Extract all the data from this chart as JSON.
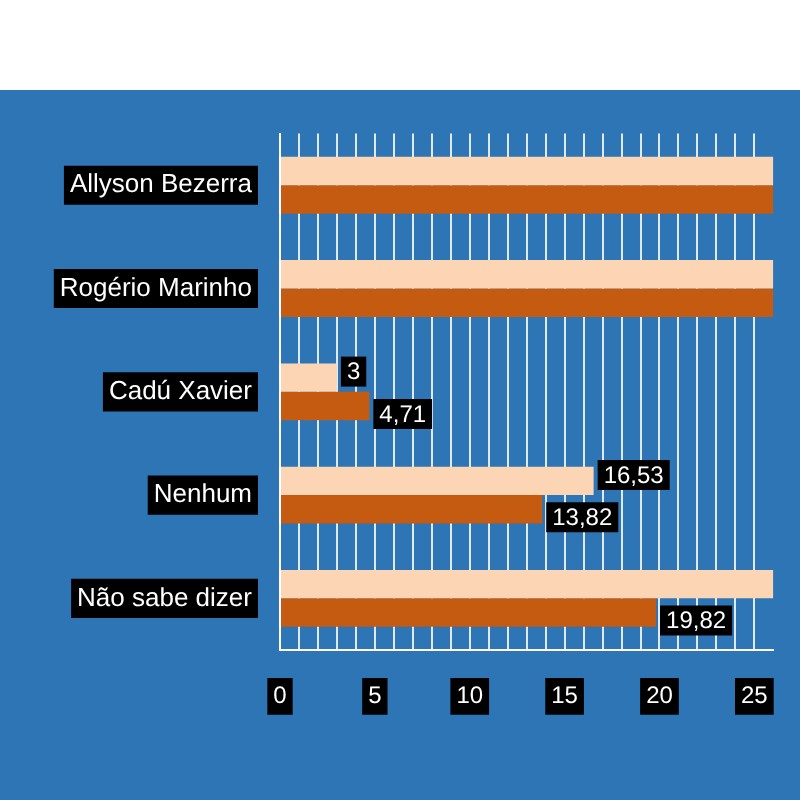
{
  "chart_data": {
    "type": "bar",
    "orientation": "horizontal",
    "categories": [
      "Allyson Bezerra",
      "Rogério Marinho",
      "Cadú Xavier",
      "Nenhum",
      "Não sabe dizer"
    ],
    "series": [
      {
        "color": "#fcd5b4",
        "values": [
          26,
          26,
          3,
          16.53,
          26
        ],
        "value_labels": [
          null,
          null,
          "3",
          "16,53",
          null
        ]
      },
      {
        "color": "#c55a11",
        "values": [
          26,
          26,
          4.71,
          13.82,
          19.82
        ],
        "value_labels": [
          null,
          null,
          "4,71",
          "13,82",
          "19,82"
        ]
      }
    ],
    "xlim": [
      0,
      26
    ],
    "xticks": [
      0,
      {
        "value": 1,
        "label": null
      },
      {
        "value": 2,
        "label": null
      },
      {
        "value": 3,
        "label": null
      },
      {
        "value": 4,
        "label": null
      },
      5,
      {
        "value": 6,
        "label": null
      },
      {
        "value": 7,
        "label": null
      },
      {
        "value": 8,
        "label": null
      },
      {
        "value": 9,
        "label": null
      },
      10,
      {
        "value": 11,
        "label": null
      },
      {
        "value": 12,
        "label": null
      },
      {
        "value": 13,
        "label": null
      },
      {
        "value": 14,
        "label": null
      },
      15,
      {
        "value": 16,
        "label": null
      },
      {
        "value": 17,
        "label": null
      },
      {
        "value": 18,
        "label": null
      },
      {
        "value": 19,
        "label": null
      },
      20,
      {
        "value": 21,
        "label": null
      },
      {
        "value": 22,
        "label": null
      },
      {
        "value": 23,
        "label": null
      },
      {
        "value": 24,
        "label": null
      },
      25
    ],
    "grid": "x",
    "legend": false
  }
}
